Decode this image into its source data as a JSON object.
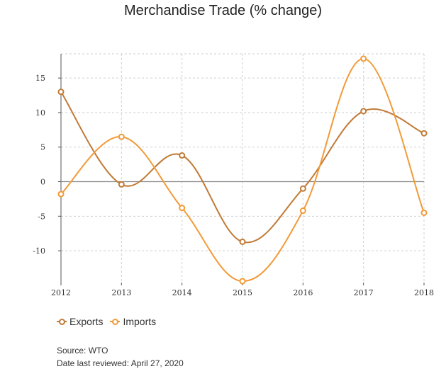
{
  "chart_data": {
    "type": "line",
    "title": "Merchandise Trade (% change)",
    "xlabel": "",
    "ylabel": "",
    "x": [
      2012,
      2013,
      2014,
      2015,
      2016,
      2017,
      2018
    ],
    "y_ticks": [
      15,
      10,
      5,
      0,
      -5,
      -10
    ],
    "ylim": [
      -14.6,
      18.5
    ],
    "grid": true,
    "legend_position": "bottom-left",
    "series": [
      {
        "name": "Exports",
        "color": "#c07a35",
        "values": [
          13.0,
          -0.4,
          3.8,
          -8.7,
          -1.0,
          10.2,
          7.0
        ]
      },
      {
        "name": "Imports",
        "color": "#f29a38",
        "values": [
          -1.8,
          6.5,
          -3.8,
          -14.4,
          -4.2,
          17.8,
          -4.5
        ]
      }
    ]
  },
  "footer": {
    "source": "Source: WTO",
    "reviewed": "Date last reviewed: April 27, 2020"
  }
}
